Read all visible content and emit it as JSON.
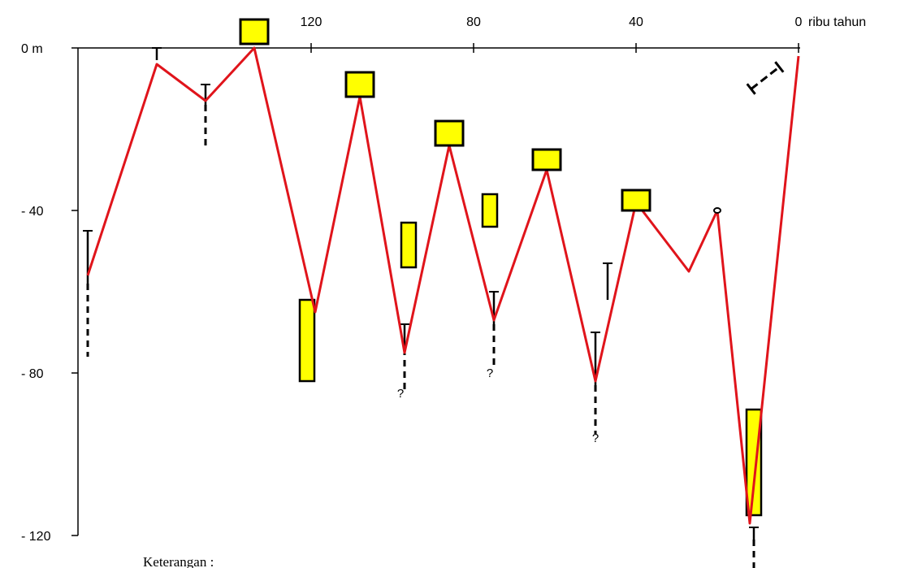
{
  "chart_data": {
    "type": "line",
    "x_axis": {
      "unit_label": "ribu tahun",
      "ticks": [
        120,
        80,
        40,
        0
      ],
      "tick_labels": [
        "120",
        "80",
        "40",
        "0"
      ],
      "range": [
        175,
        0
      ],
      "reversed": true,
      "position": "top"
    },
    "y_axis": {
      "unit_label": "m",
      "ticks": [
        0,
        -40,
        -80,
        -120
      ],
      "tick_labels": [
        "0 m",
        "- 40",
        "- 80",
        "- 120"
      ],
      "range": [
        -125,
        0
      ]
    },
    "grid": false,
    "series": [
      {
        "color": "#e0141b",
        "points": [
          {
            "x": 175,
            "y": -56
          },
          {
            "x": 158,
            "y": -4
          },
          {
            "x": 146,
            "y": -13
          },
          {
            "x": 134,
            "y": 0
          },
          {
            "x": 119,
            "y": -65
          },
          {
            "x": 108,
            "y": -12
          },
          {
            "x": 97,
            "y": -75
          },
          {
            "x": 86,
            "y": -24
          },
          {
            "x": 75,
            "y": -67
          },
          {
            "x": 62,
            "y": -30
          },
          {
            "x": 50,
            "y": -82
          },
          {
            "x": 40,
            "y": -38
          },
          {
            "x": 27,
            "y": -55
          },
          {
            "x": 20,
            "y": -40
          },
          {
            "x": 12,
            "y": -117
          },
          {
            "x": 0,
            "y": -2
          }
        ]
      }
    ],
    "markers": {
      "yellow_boxes": [
        {
          "x": 134,
          "y_top": 7,
          "y_bottom": 1
        },
        {
          "x": 108,
          "y_top": -6,
          "y_bottom": -12
        },
        {
          "x": 86,
          "y_top": -18,
          "y_bottom": -24
        },
        {
          "x": 62,
          "y_top": -25,
          "y_bottom": -30
        },
        {
          "x": 40,
          "y_top": -35,
          "y_bottom": -40
        }
      ],
      "yellow_bars": [
        {
          "x": 121,
          "y_top": -62,
          "y_bottom": -82
        },
        {
          "x": 96,
          "y_top": -43,
          "y_bottom": -54
        },
        {
          "x": 76,
          "y_top": -36,
          "y_bottom": -44
        },
        {
          "x": 11,
          "y_top": -89,
          "y_bottom": -115
        }
      ],
      "error_bars": [
        {
          "x": 175,
          "y_top": -45,
          "y_solid_end": -58,
          "y_dash_end": -76
        },
        {
          "x": 158,
          "y_top": 0,
          "y_solid_end": -3,
          "y_dash_end": -3
        },
        {
          "x": 146,
          "y_top": -9,
          "y_solid_end": -14,
          "y_dash_end": -24
        },
        {
          "x": 97,
          "y_top": -68,
          "y_solid_end": -74,
          "y_dash_end": -84
        },
        {
          "x": 75,
          "y_top": -60,
          "y_solid_end": -68,
          "y_dash_end": -78
        },
        {
          "x": 50,
          "y_top": -70,
          "y_solid_end": -83,
          "y_dash_end": -95
        },
        {
          "x": 47,
          "y_top": -53,
          "y_solid_end": -62,
          "y_dash_end": -62
        },
        {
          "x": 11,
          "y_top": -118,
          "y_solid_end": -121,
          "y_dash_end": -129
        }
      ],
      "question_marks": [
        {
          "x": 98,
          "y": -84,
          "text": "?"
        },
        {
          "x": 76,
          "y": -79,
          "text": "?"
        },
        {
          "x": 50,
          "y": -95,
          "text": "?"
        }
      ],
      "small_circle": {
        "x": 20,
        "y": -40
      }
    },
    "legend_title": "Keterangan :"
  }
}
